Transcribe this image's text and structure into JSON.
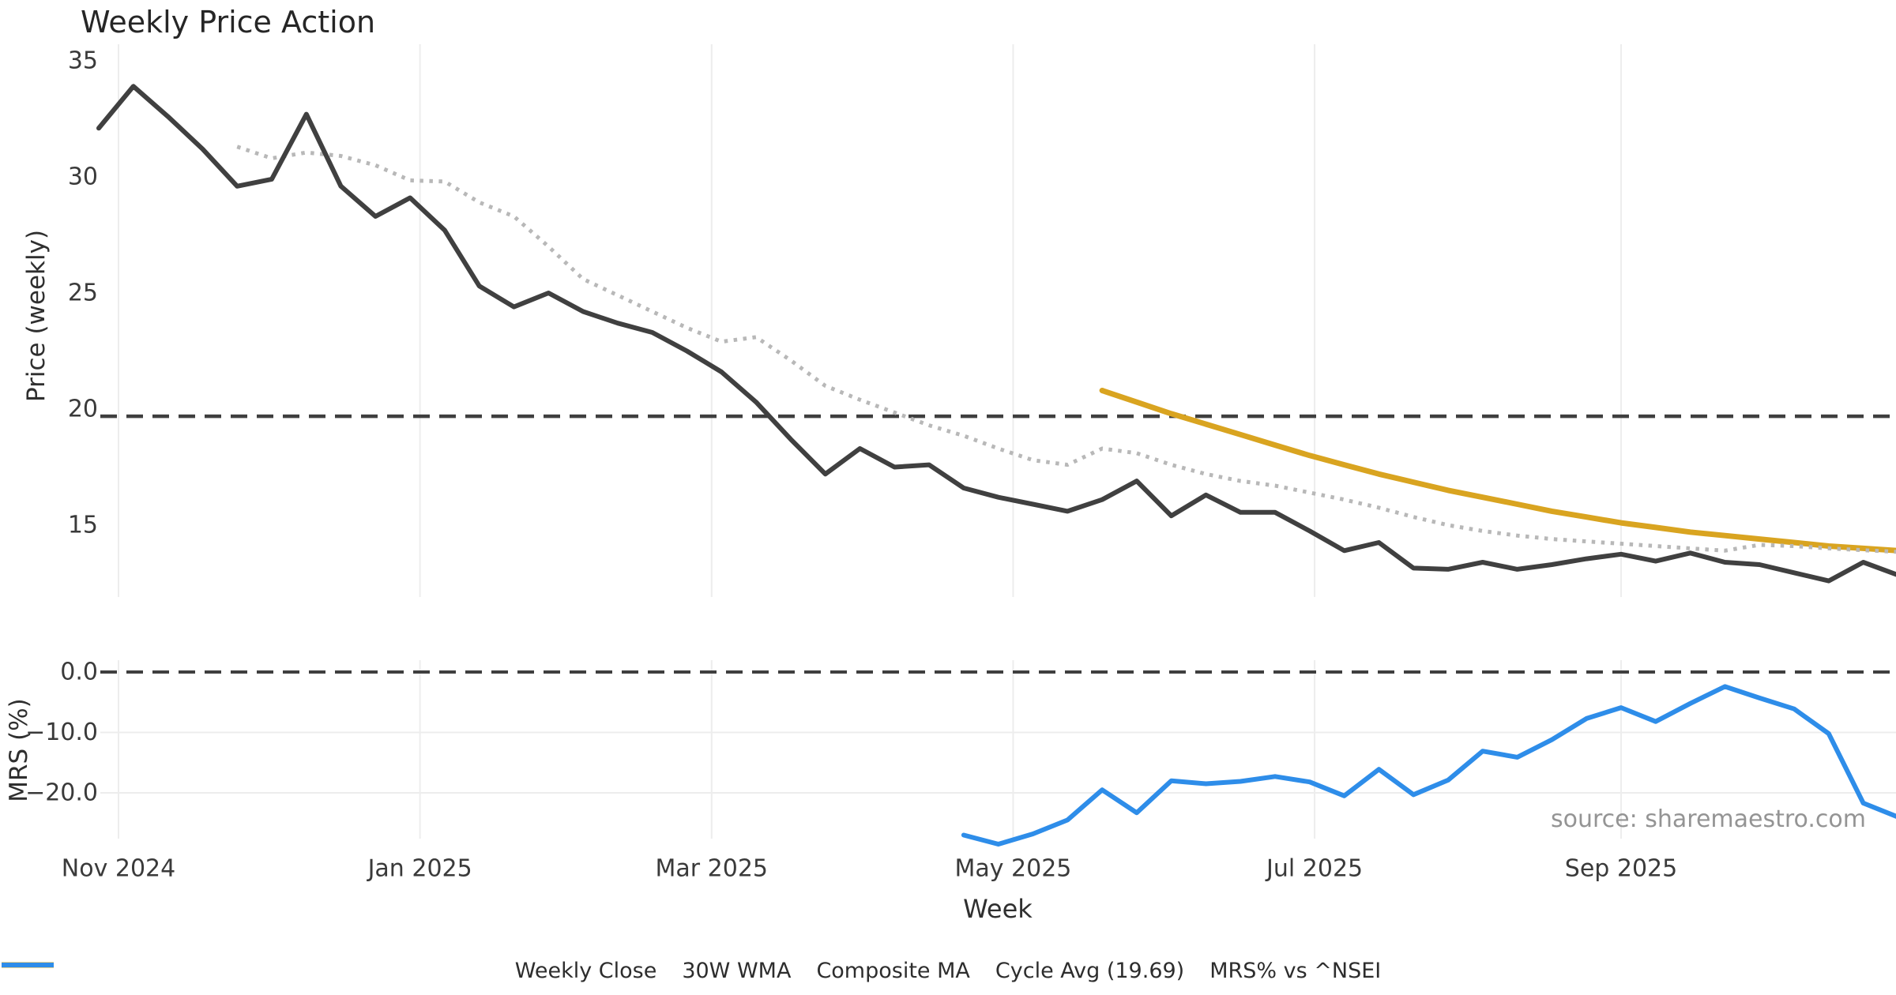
{
  "chart_data": {
    "type": "line",
    "title": "Weekly Price Action",
    "xlabel": "Week",
    "source_text": "source: sharemaestro.com",
    "x_weeks": [
      "2024-10-28",
      "2024-11-04",
      "2024-11-11",
      "2024-11-18",
      "2024-11-25",
      "2024-12-02",
      "2024-12-09",
      "2024-12-16",
      "2024-12-23",
      "2024-12-30",
      "2025-01-06",
      "2025-01-13",
      "2025-01-20",
      "2025-01-27",
      "2025-02-03",
      "2025-02-10",
      "2025-02-17",
      "2025-02-24",
      "2025-03-03",
      "2025-03-10",
      "2025-03-17",
      "2025-03-24",
      "2025-03-31",
      "2025-04-07",
      "2025-04-14",
      "2025-04-21",
      "2025-04-28",
      "2025-05-05",
      "2025-05-12",
      "2025-05-19",
      "2025-05-26",
      "2025-06-02",
      "2025-06-09",
      "2025-06-16",
      "2025-06-23",
      "2025-06-30",
      "2025-07-07",
      "2025-07-14",
      "2025-07-21",
      "2025-07-28",
      "2025-08-04",
      "2025-08-11",
      "2025-08-18",
      "2025-08-25",
      "2025-09-01",
      "2025-09-08",
      "2025-09-15",
      "2025-09-22",
      "2025-09-29",
      "2025-10-06",
      "2025-10-13",
      "2025-10-20",
      "2025-10-27"
    ],
    "x_ticks": [
      {
        "date": "2024-11-01",
        "label": "Nov 2024"
      },
      {
        "date": "2025-01-01",
        "label": "Jan 2025"
      },
      {
        "date": "2025-03-01",
        "label": "Mar 2025"
      },
      {
        "date": "2025-05-01",
        "label": "May 2025"
      },
      {
        "date": "2025-07-01",
        "label": "Jul 2025"
      },
      {
        "date": "2025-09-01",
        "label": "Sep 2025"
      }
    ],
    "panels": [
      {
        "ylabel": "Price (weekly)",
        "ylim": [
          12,
          35.6
        ],
        "grid": "vertical-months",
        "yticks": [
          {
            "value": 35,
            "label": "35"
          },
          {
            "value": 30,
            "label": "30"
          },
          {
            "value": 25,
            "label": "25"
          },
          {
            "value": 20,
            "label": "20"
          },
          {
            "value": 15,
            "label": "15"
          }
        ],
        "series": [
          {
            "name": "Cycle Avg (19.69)",
            "style": "dashed",
            "color": "#3f3f3f",
            "width": 4.5,
            "constant": 19.69
          },
          {
            "name": "30W WMA",
            "style": "solid",
            "color": "#d9a420",
            "width": 7,
            "values": [
              null,
              null,
              null,
              null,
              null,
              null,
              null,
              null,
              null,
              null,
              null,
              null,
              null,
              null,
              null,
              null,
              null,
              null,
              null,
              null,
              null,
              null,
              null,
              null,
              null,
              null,
              null,
              null,
              null,
              20.8,
              20.3,
              19.8,
              19.35,
              18.9,
              18.45,
              18.0,
              17.6,
              17.2,
              16.85,
              16.5,
              16.2,
              15.9,
              15.6,
              15.35,
              15.1,
              14.9,
              14.7,
              14.55,
              14.4,
              14.25,
              14.1,
              14.0,
              13.9
            ]
          },
          {
            "name": "Composite MA",
            "style": "dotted",
            "color": "#b8b8b8",
            "width": 5,
            "values": [
              null,
              null,
              null,
              null,
              31.3,
              30.8,
              31.05,
              30.9,
              30.5,
              29.85,
              29.8,
              28.9,
              28.3,
              27.0,
              25.6,
              24.9,
              24.2,
              23.5,
              22.9,
              23.1,
              22.1,
              21.0,
              20.4,
              19.85,
              19.3,
              18.85,
              18.3,
              17.8,
              17.6,
              18.3,
              18.1,
              17.6,
              17.2,
              16.9,
              16.7,
              16.4,
              16.1,
              15.75,
              15.35,
              15.0,
              14.75,
              14.55,
              14.4,
              14.3,
              14.2,
              14.1,
              14.0,
              13.9,
              14.15,
              14.1,
              14.0,
              13.92,
              13.85
            ]
          },
          {
            "name": "Weekly Close",
            "style": "solid",
            "color": "#404040",
            "width": 6,
            "values": [
              32.1,
              33.9,
              32.6,
              31.2,
              29.6,
              29.9,
              32.7,
              29.6,
              28.3,
              29.1,
              27.7,
              25.3,
              24.4,
              25.0,
              24.2,
              23.7,
              23.3,
              22.5,
              21.6,
              20.3,
              18.7,
              17.2,
              18.3,
              17.5,
              17.6,
              16.6,
              16.2,
              15.9,
              15.6,
              16.1,
              16.9,
              15.4,
              16.3,
              15.55,
              15.55,
              14.75,
              13.9,
              14.25,
              13.15,
              13.1,
              13.4,
              13.1,
              13.3,
              13.55,
              13.75,
              13.45,
              13.8,
              13.4,
              13.3,
              12.95,
              12.6,
              13.4,
              12.85
            ]
          }
        ]
      },
      {
        "ylabel": "MRS (%)",
        "ylim": [
          -29.5,
          1.7
        ],
        "grid": "horizontal",
        "yticks": [
          {
            "value": 0,
            "label": "0.0"
          },
          {
            "value": -10,
            "label": "−10.0"
          },
          {
            "value": -20,
            "label": "−20.0"
          }
        ],
        "series": [
          {
            "name": "Zero Line",
            "style": "dashed",
            "color": "#3f3f3f",
            "width": 4,
            "constant": 0
          },
          {
            "name": "MRS% vs ^NSEI",
            "style": "solid",
            "color": "#2e8de9",
            "width": 6,
            "values": [
              null,
              null,
              null,
              null,
              null,
              null,
              null,
              null,
              null,
              null,
              null,
              null,
              null,
              null,
              null,
              null,
              null,
              null,
              null,
              null,
              null,
              null,
              null,
              null,
              null,
              -27.0,
              -28.5,
              -26.8,
              -24.5,
              -19.5,
              -23.3,
              -18.0,
              -18.5,
              -18.1,
              -17.3,
              -18.2,
              -20.5,
              -16.1,
              -20.3,
              -17.9,
              -13.1,
              -14.1,
              -11.2,
              -7.7,
              -5.9,
              -8.2,
              -5.2,
              -2.4,
              -4.3,
              -6.1,
              -10.2,
              -21.7,
              -24.0
            ]
          }
        ]
      }
    ],
    "legend": [
      {
        "label": "Weekly Close",
        "style": "solid",
        "color": "#404040",
        "width": 6
      },
      {
        "label": "30W WMA",
        "style": "solid",
        "color": "#d9a420",
        "width": 7
      },
      {
        "label": "Composite MA",
        "style": "dotted",
        "color": "#b8b8b8",
        "width": 5
      },
      {
        "label": "Cycle Avg (19.69)",
        "style": "dashed",
        "color": "#3f3f3f",
        "width": 4.5
      },
      {
        "label": "MRS% vs ^NSEI",
        "style": "solid",
        "color": "#2e8de9",
        "width": 6
      }
    ]
  }
}
